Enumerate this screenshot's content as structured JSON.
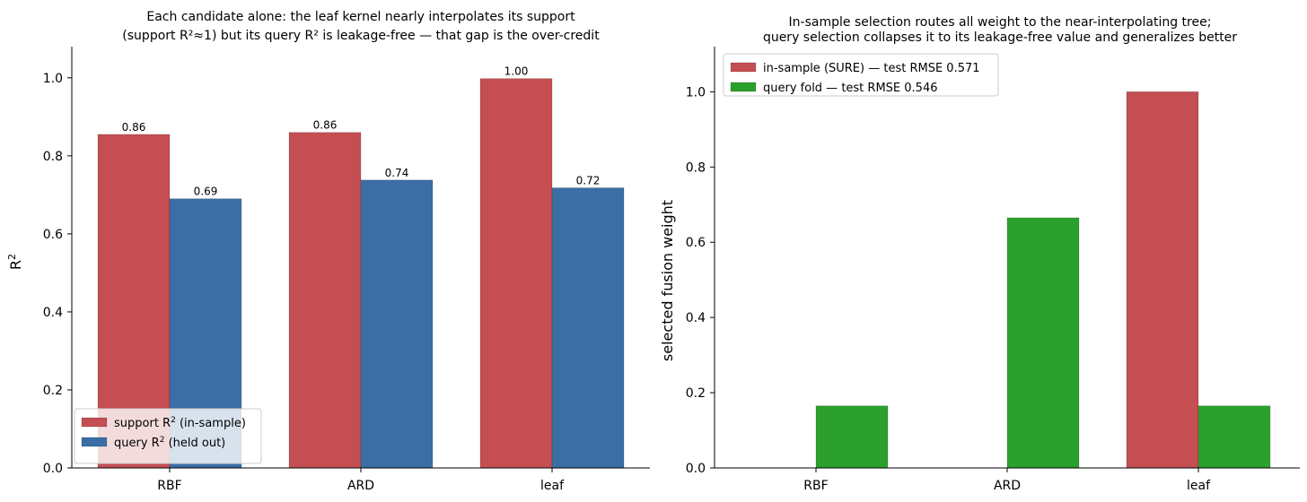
{
  "chart_data": [
    {
      "type": "bar",
      "title_lines": [
        "Each candidate alone: the leaf kernel nearly interpolates its support",
        "(support R²≈1) but its query R² is leakage-free — that gap is the over-credit"
      ],
      "xlabel": "",
      "ylabel": "R²",
      "categories": [
        "RBF",
        "ARD",
        "leaf"
      ],
      "ylim": [
        0,
        1.08
      ],
      "yticks": [
        "0.0",
        "0.2",
        "0.4",
        "0.6",
        "0.8",
        "1.0"
      ],
      "series": [
        {
          "name": "support R² (in-sample)",
          "color": "#c44e52",
          "values": [
            0.855,
            0.86,
            0.998
          ],
          "labels": [
            "0.86",
            "0.86",
            "1.00"
          ]
        },
        {
          "name": "query R² (held out)",
          "color": "#3a6ea5",
          "values": [
            0.69,
            0.738,
            0.718
          ],
          "labels": [
            "0.69",
            "0.74",
            "0.72"
          ]
        }
      ],
      "legend_position": "lower-left",
      "grid": false
    },
    {
      "type": "bar",
      "title_lines": [
        "In-sample selection routes all weight to the near-interpolating tree;",
        "query selection collapses it to its leakage-free value and generalizes better"
      ],
      "xlabel": "",
      "ylabel": "selected fusion weight",
      "categories": [
        "RBF",
        "ARD",
        "leaf"
      ],
      "ylim": [
        0,
        1.12
      ],
      "yticks": [
        "0.0",
        "0.2",
        "0.4",
        "0.6",
        "0.8",
        "1.0"
      ],
      "series": [
        {
          "name": "in-sample (SURE) — test RMSE 0.571",
          "color": "#c44e52",
          "values": [
            0.0,
            0.0,
            1.0
          ]
        },
        {
          "name": "query fold — test RMSE 0.546",
          "color": "#2ca02c",
          "values": [
            0.165,
            0.665,
            0.165
          ]
        }
      ],
      "legend_position": "upper-left",
      "grid": false
    }
  ]
}
